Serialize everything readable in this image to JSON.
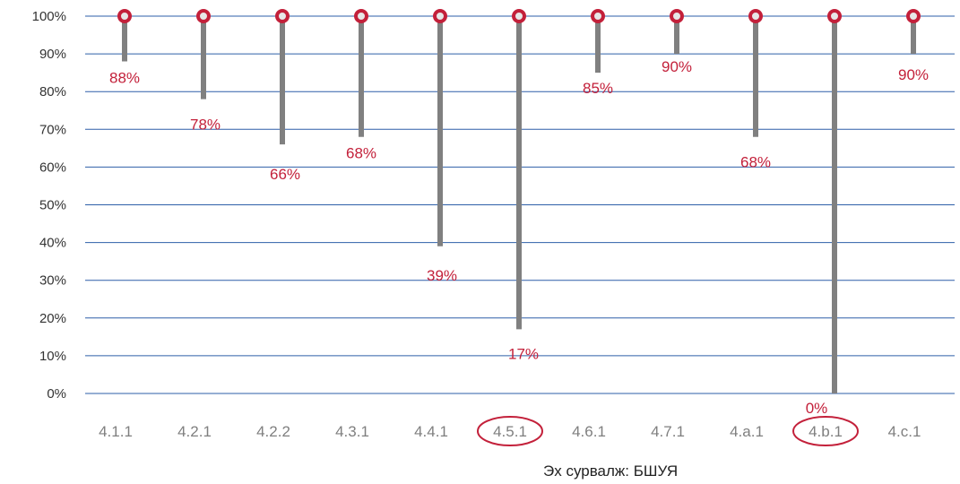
{
  "chart_data": {
    "type": "bar",
    "categories": [
      "4.1.1",
      "4.2.1",
      "4.2.2",
      "4.3.1",
      "4.4.1",
      "4.5.1",
      "4.6.1",
      "4.7.1",
      "4.a.1",
      "4.b.1",
      "4.c.1"
    ],
    "values": [
      88,
      78,
      66,
      68,
      39,
      17,
      85,
      90,
      68,
      0,
      90
    ],
    "data_labels": [
      "88%",
      "78%",
      "66%",
      "68%",
      "39%",
      "17%",
      "85%",
      "90%",
      "68%",
      "0%",
      "90%"
    ],
    "y_ticks": [
      "0%",
      "10%",
      "20%",
      "30%",
      "40%",
      "50%",
      "60%",
      "70%",
      "80%",
      "90%",
      "100%"
    ],
    "ylim": [
      0,
      100
    ],
    "target": 100,
    "highlighted_categories": [
      "4.5.1",
      "4.b.1"
    ],
    "grid": true,
    "title": "",
    "xlabel": "",
    "ylabel": "",
    "colors": {
      "gridline": "#2e5fa8",
      "stem": "#808080",
      "marker": "#c3203a",
      "label": "#c3203a",
      "highlight": "#c3203a"
    }
  },
  "source_note": "Эх сурвалж: БШУЯ"
}
